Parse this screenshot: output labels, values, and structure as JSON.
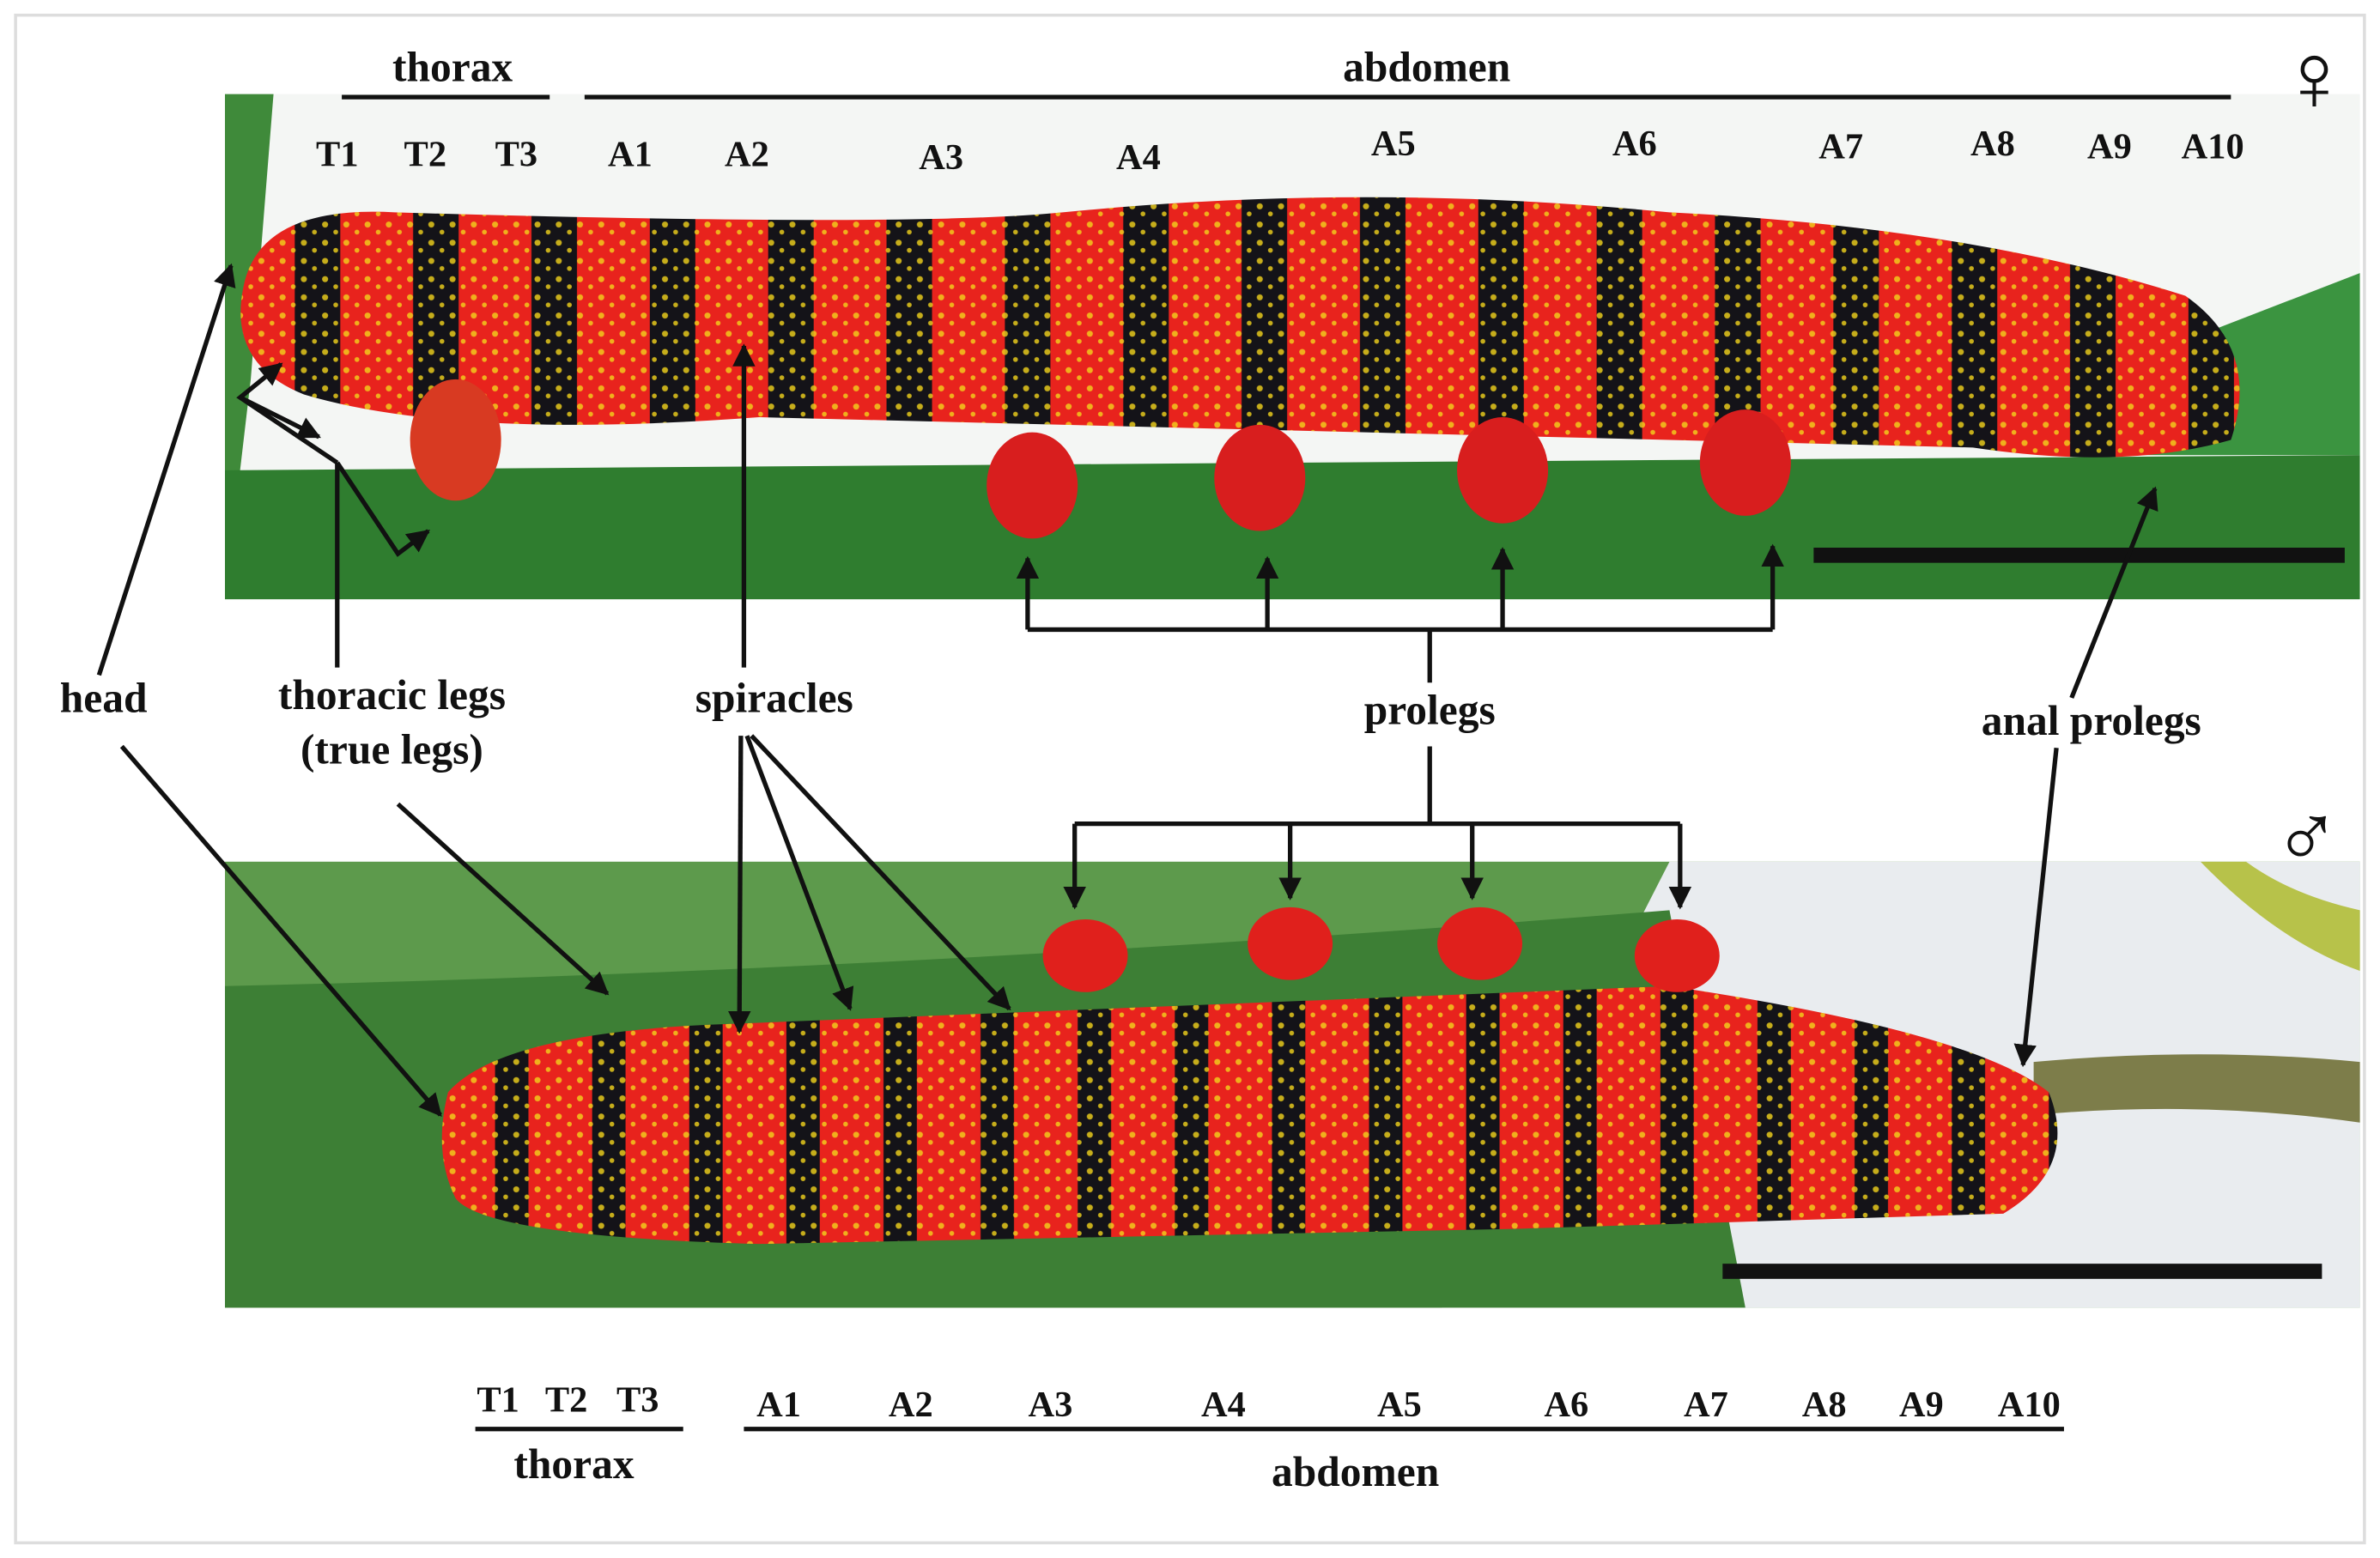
{
  "top": {
    "thorax": "thorax",
    "abdomen": "abdomen",
    "segments": [
      "T1",
      "T2",
      "T3",
      "A1",
      "A2",
      "A3",
      "A4",
      "A5",
      "A6",
      "A7",
      "A8",
      "A9",
      "A10"
    ]
  },
  "female_symbol": "♀",
  "male_symbol": "♂",
  "callouts": {
    "head": "head",
    "thoracic_legs": "thoracic legs",
    "true_legs": "(true legs)",
    "spiracles": "spiracles",
    "prolegs": "prolegs",
    "anal_prolegs": "anal prolegs"
  },
  "bottom": {
    "segments": [
      "T1",
      "T2",
      "T3",
      "A1",
      "A2",
      "A3",
      "A4",
      "A5",
      "A6",
      "A7",
      "A8",
      "A9",
      "A10"
    ],
    "thorax": "thorax",
    "abdomen": "abdomen"
  }
}
